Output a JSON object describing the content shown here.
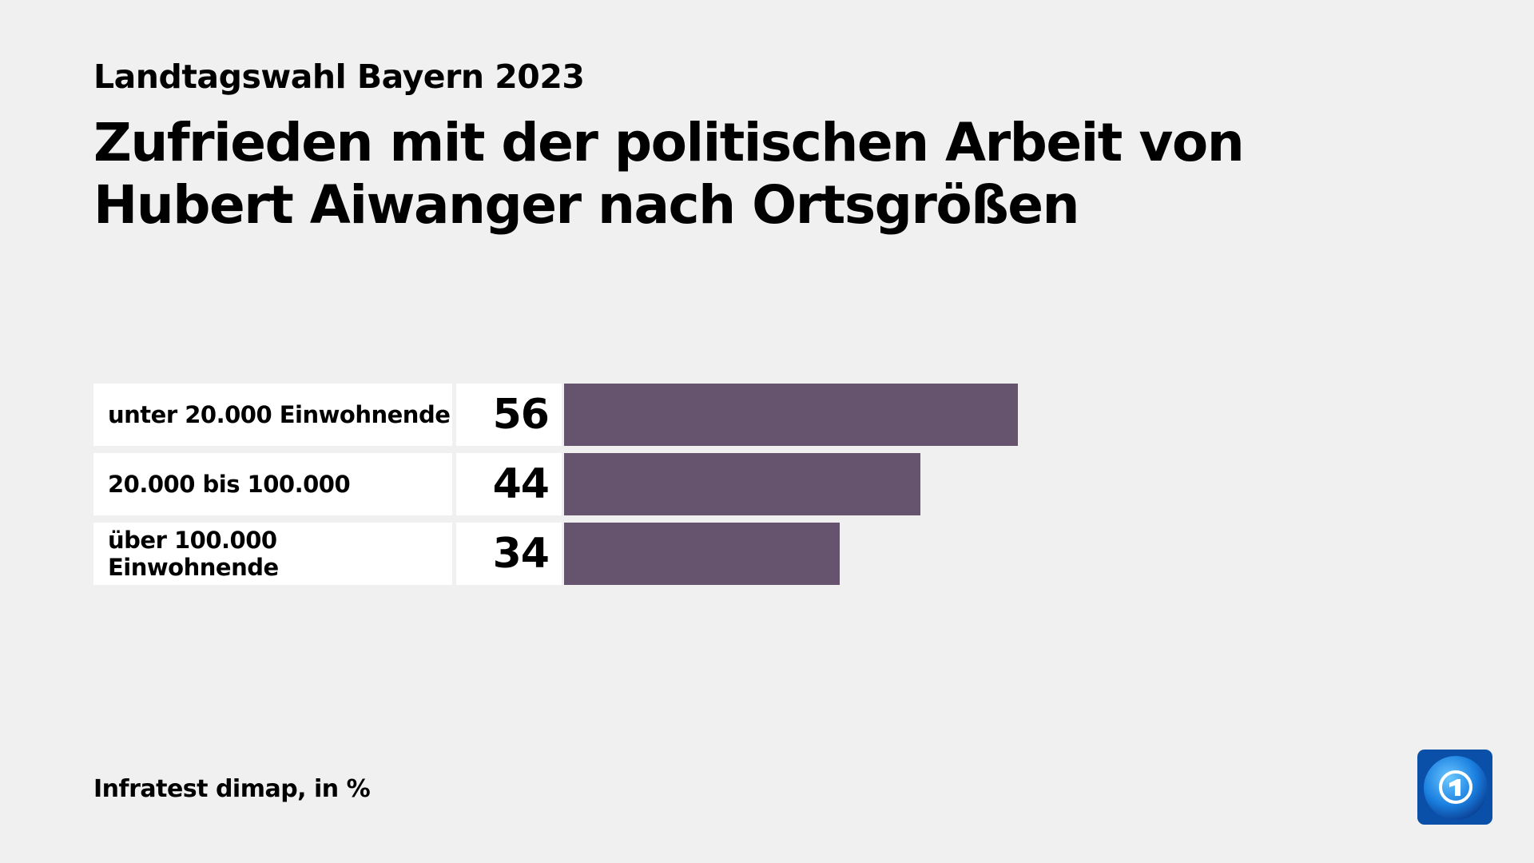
{
  "header": {
    "subtitle": "Landtagswahl Bayern 2023",
    "title": "Zufrieden mit der politischen Arbeit von Hubert Aiwanger nach Ortsgrößen"
  },
  "footer": {
    "source": "Infratest dimap, in %"
  },
  "logo": {
    "icon": "tagesschau-globe-logo"
  },
  "chart_data": {
    "type": "bar",
    "orientation": "horizontal",
    "title": "Zufrieden mit der politischen Arbeit von Hubert Aiwanger nach Ortsgrößen",
    "subtitle": "Landtagswahl Bayern 2023",
    "categories": [
      "unter 20.000 Einwohnende",
      "20.000 bis 100.000",
      "über 100.000 Einwohnende"
    ],
    "values": [
      56,
      44,
      34
    ],
    "value_labels": [
      "56",
      "44",
      "34"
    ],
    "unit": "%",
    "bar_color": "#66546f",
    "grid": false
  }
}
